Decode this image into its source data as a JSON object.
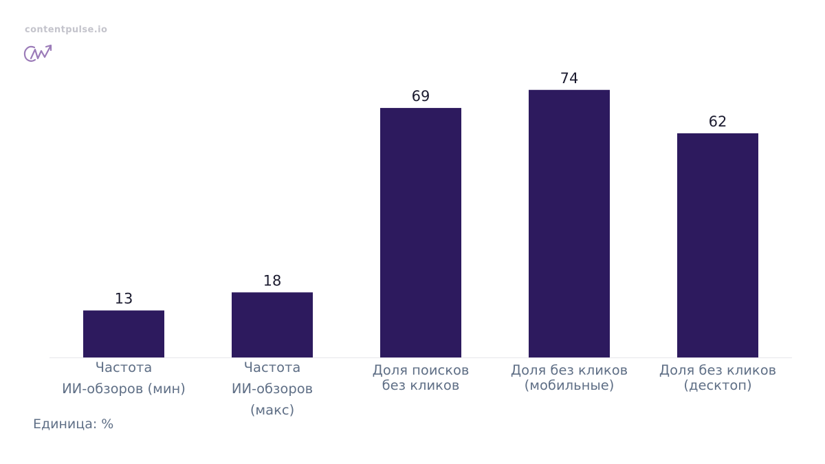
{
  "brand": {
    "site": "contentpulse.io",
    "logo_icon": "cp-logo-icon",
    "logo_color": "#9b7bb8"
  },
  "note": "Единица: %",
  "colors": {
    "bar": "#2d1a5e",
    "value_label": "#1b1b2f",
    "category_label": "#5f6f86",
    "baseline": "#e6e6ea"
  },
  "chart_data": {
    "type": "bar",
    "title": "",
    "xlabel": "",
    "ylabel": "",
    "ylim": [
      0,
      80
    ],
    "grid": false,
    "categories": [
      [
        "Частота",
        "ИИ-обзоров (мин)"
      ],
      [
        "Частота",
        "ИИ-обзоров",
        "(макс)"
      ],
      [
        "Доля поисков",
        "без кликов"
      ],
      [
        "Доля без кликов",
        "(мобильные)"
      ],
      [
        "Доля без кликов",
        "(десктоп)"
      ]
    ],
    "values": [
      13,
      18,
      69,
      74,
      62
    ],
    "data_labels": [
      "13",
      "18",
      "69",
      "74",
      "62"
    ]
  }
}
